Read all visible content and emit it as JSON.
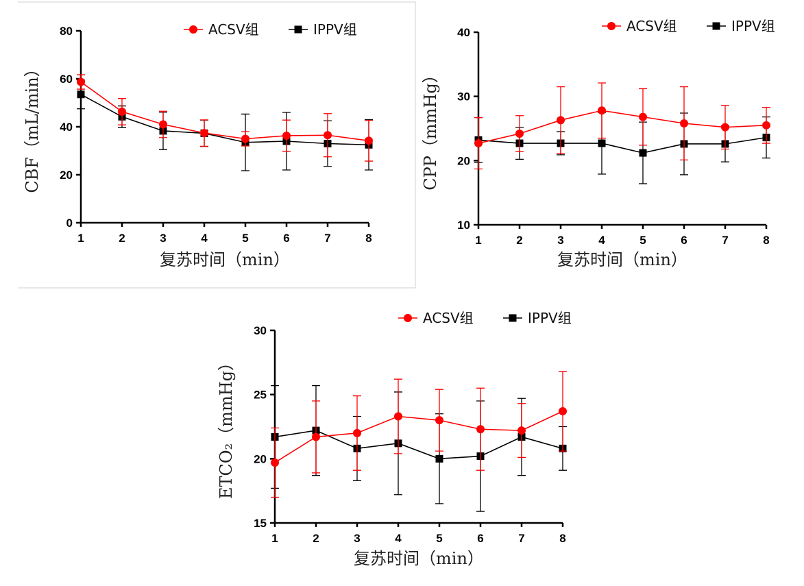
{
  "colors": {
    "acsv": "#ff0000",
    "ippv": "#000000",
    "panel_border": "#d0d0d0"
  },
  "chart_data": [
    {
      "type": "line",
      "x": [
        1,
        2,
        3,
        4,
        5,
        6,
        7,
        8
      ],
      "xlabel": "复苏时间（min）",
      "ylabel": "CBF（mL/min）",
      "xlim": [
        1,
        8
      ],
      "ylim": [
        0,
        80
      ],
      "yticks": [
        0,
        20,
        40,
        60,
        80
      ],
      "legend_position": "top-right",
      "grid": false,
      "series": [
        {
          "name": "ACSV组",
          "marker": "circle",
          "values": [
            58.7,
            46.3,
            41.0,
            37.4,
            35.0,
            36.3,
            36.5,
            34.2
          ],
          "error": [
            3.0,
            5.5,
            5.5,
            5.5,
            3.0,
            6.5,
            9.0,
            8.5
          ]
        },
        {
          "name": "IPPV组",
          "marker": "square",
          "values": [
            53.5,
            44.2,
            38.3,
            37.3,
            33.5,
            34.0,
            33.0,
            32.5
          ],
          "error": [
            6.0,
            4.5,
            7.8,
            5.5,
            11.8,
            12.0,
            9.5,
            10.5
          ]
        }
      ]
    },
    {
      "type": "line",
      "x": [
        1,
        2,
        3,
        4,
        5,
        6,
        7,
        8
      ],
      "xlabel": "复苏时间（min）",
      "ylabel": "CPP（mmHg）",
      "xlim": [
        1,
        8
      ],
      "ylim": [
        10,
        40
      ],
      "yticks": [
        10,
        20,
        30,
        40
      ],
      "legend_position": "top-right",
      "grid": false,
      "series": [
        {
          "name": "ACSV组",
          "marker": "circle",
          "values": [
            22.7,
            24.2,
            26.3,
            27.8,
            26.8,
            25.8,
            25.2,
            25.5
          ],
          "error": [
            4.0,
            2.8,
            5.2,
            4.3,
            4.4,
            5.7,
            3.4,
            2.8
          ]
        },
        {
          "name": "IPPV组",
          "marker": "square",
          "values": [
            23.2,
            22.7,
            22.7,
            22.7,
            21.2,
            22.6,
            22.6,
            23.6
          ],
          "error": [
            3.5,
            2.5,
            1.8,
            4.8,
            4.8,
            4.8,
            2.8,
            3.2
          ]
        }
      ]
    },
    {
      "type": "line",
      "x": [
        1,
        2,
        3,
        4,
        5,
        6,
        7,
        8
      ],
      "xlabel": "复苏时间（min）",
      "ylabel": "ETCO₂（mmHg）",
      "xlim": [
        1,
        8
      ],
      "ylim": [
        15,
        30
      ],
      "yticks": [
        15,
        20,
        25,
        30
      ],
      "legend_position": "top-right",
      "grid": false,
      "series": [
        {
          "name": "ACSV组",
          "marker": "circle",
          "values": [
            19.7,
            21.7,
            22.0,
            23.3,
            23.0,
            22.3,
            22.2,
            23.7
          ],
          "error": [
            2.7,
            2.8,
            2.9,
            2.9,
            2.4,
            3.2,
            2.1,
            3.1
          ]
        },
        {
          "name": "IPPV组",
          "marker": "square",
          "values": [
            21.7,
            22.2,
            20.8,
            21.2,
            20.0,
            20.2,
            21.7,
            20.8
          ],
          "error": [
            4.0,
            3.5,
            2.5,
            4.0,
            3.5,
            4.3,
            3.0,
            1.7
          ]
        }
      ]
    }
  ]
}
